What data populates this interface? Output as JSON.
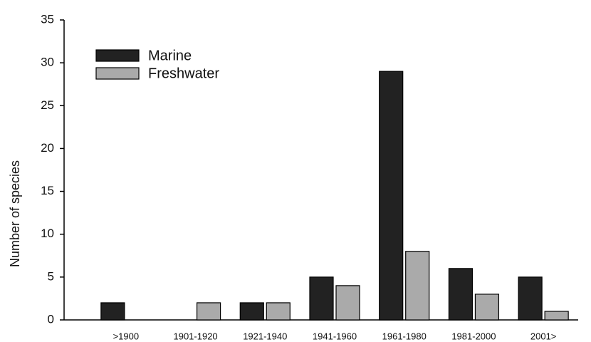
{
  "chart_data": {
    "type": "bar",
    "ylabel": "Number of species",
    "categories": [
      ">1900",
      "1901-1920",
      "1921-1940",
      "1941-1960",
      "1961-1980",
      "1981-2000",
      "2001>"
    ],
    "series": [
      {
        "name": "Marine",
        "color": "#222222",
        "values": [
          2,
          0,
          2,
          5,
          29,
          6,
          5
        ]
      },
      {
        "name": "Freshwater",
        "color": "#aaaaaa",
        "values": [
          0,
          2,
          2,
          4,
          8,
          3,
          1
        ]
      }
    ],
    "ylim": [
      0,
      35
    ],
    "yticks": [
      0,
      5,
      10,
      15,
      20,
      25,
      30,
      35
    ],
    "legend": "upper left",
    "grid": false
  }
}
